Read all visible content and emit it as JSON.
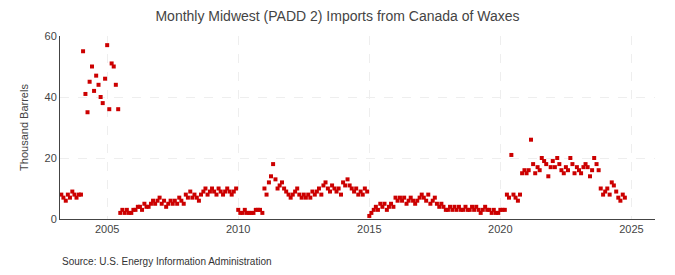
{
  "chart_data": {
    "type": "scatter",
    "title": "Monthly Midwest (PADD 2) Imports from Canada of Waxes",
    "ylabel": "Thousand Barrels",
    "annotations": [
      "Source: U.S. Energy Information Administration"
    ],
    "color": "#cc0000",
    "marker": "square",
    "grid": true,
    "xlim": [
      2003.2,
      2025.9
    ],
    "xticks": [
      2005,
      2010,
      2015,
      2020,
      2025
    ],
    "ylim": [
      0,
      60
    ],
    "yticks": [
      0,
      20,
      40,
      60
    ],
    "x": [
      2003.25,
      2003.33,
      2003.42,
      2003.5,
      2003.58,
      2003.67,
      2003.75,
      2003.83,
      2003.92,
      2004.0,
      2004.08,
      2004.17,
      2004.25,
      2004.33,
      2004.42,
      2004.5,
      2004.58,
      2004.67,
      2004.75,
      2004.83,
      2004.92,
      2005.0,
      2005.08,
      2005.17,
      2005.25,
      2005.33,
      2005.42,
      2005.5,
      2005.58,
      2005.67,
      2005.75,
      2005.83,
      2005.92,
      2006.0,
      2006.08,
      2006.17,
      2006.25,
      2006.33,
      2006.42,
      2006.5,
      2006.58,
      2006.67,
      2006.75,
      2006.83,
      2006.92,
      2007.0,
      2007.08,
      2007.17,
      2007.25,
      2007.33,
      2007.42,
      2007.5,
      2007.58,
      2007.67,
      2007.75,
      2007.83,
      2007.92,
      2008.0,
      2008.08,
      2008.17,
      2008.25,
      2008.33,
      2008.42,
      2008.5,
      2008.58,
      2008.67,
      2008.75,
      2008.83,
      2008.92,
      2009.0,
      2009.08,
      2009.17,
      2009.25,
      2009.33,
      2009.42,
      2009.5,
      2009.58,
      2009.67,
      2009.75,
      2009.83,
      2009.92,
      2010.0,
      2010.08,
      2010.17,
      2010.25,
      2010.33,
      2010.42,
      2010.5,
      2010.58,
      2010.67,
      2010.75,
      2010.83,
      2010.92,
      2011.0,
      2011.08,
      2011.17,
      2011.25,
      2011.33,
      2011.42,
      2011.5,
      2011.58,
      2011.67,
      2011.75,
      2011.83,
      2011.92,
      2012.0,
      2012.08,
      2012.17,
      2012.25,
      2012.33,
      2012.42,
      2012.5,
      2012.58,
      2012.67,
      2012.75,
      2012.83,
      2012.92,
      2013.0,
      2013.08,
      2013.17,
      2013.25,
      2013.33,
      2013.42,
      2013.5,
      2013.58,
      2013.67,
      2013.75,
      2013.83,
      2013.92,
      2014.0,
      2014.08,
      2014.17,
      2014.25,
      2014.33,
      2014.42,
      2014.5,
      2014.58,
      2014.67,
      2014.75,
      2014.83,
      2014.92,
      2015.0,
      2015.08,
      2015.17,
      2015.25,
      2015.33,
      2015.42,
      2015.5,
      2015.58,
      2015.67,
      2015.75,
      2015.83,
      2015.92,
      2016.0,
      2016.08,
      2016.17,
      2016.25,
      2016.33,
      2016.42,
      2016.5,
      2016.58,
      2016.67,
      2016.75,
      2016.83,
      2016.92,
      2017.0,
      2017.08,
      2017.17,
      2017.25,
      2017.33,
      2017.42,
      2017.5,
      2017.58,
      2017.67,
      2017.75,
      2017.83,
      2017.92,
      2018.0,
      2018.08,
      2018.17,
      2018.25,
      2018.33,
      2018.42,
      2018.5,
      2018.58,
      2018.67,
      2018.75,
      2018.83,
      2018.92,
      2019.0,
      2019.08,
      2019.17,
      2019.25,
      2019.33,
      2019.42,
      2019.5,
      2019.58,
      2019.67,
      2019.75,
      2019.83,
      2019.92,
      2020.0,
      2020.08,
      2020.17,
      2020.25,
      2020.33,
      2020.42,
      2020.5,
      2020.58,
      2020.67,
      2020.75,
      2020.83,
      2020.92,
      2021.0,
      2021.08,
      2021.17,
      2021.25,
      2021.33,
      2021.42,
      2021.5,
      2021.58,
      2021.67,
      2021.75,
      2021.83,
      2021.92,
      2022.0,
      2022.08,
      2022.17,
      2022.25,
      2022.33,
      2022.42,
      2022.5,
      2022.58,
      2022.67,
      2022.75,
      2022.83,
      2022.92,
      2023.0,
      2023.08,
      2023.17,
      2023.25,
      2023.33,
      2023.42,
      2023.5,
      2023.58,
      2023.67,
      2023.75,
      2023.83,
      2023.92,
      2024.0,
      2024.08,
      2024.17,
      2024.25,
      2024.33,
      2024.42,
      2024.5,
      2024.58,
      2024.67,
      2024.75
    ],
    "values": [
      8,
      7,
      6,
      8,
      7,
      9,
      8,
      7,
      8,
      8,
      55,
      41,
      35,
      45,
      50,
      42,
      47,
      44,
      40,
      38,
      46,
      57,
      36,
      51,
      50,
      44,
      36,
      2,
      3,
      2,
      3,
      2,
      2,
      3,
      3,
      4,
      4,
      3,
      5,
      4,
      4,
      5,
      6,
      5,
      6,
      7,
      5,
      6,
      4,
      5,
      6,
      5,
      6,
      5,
      7,
      6,
      5,
      8,
      7,
      9,
      7,
      8,
      7,
      6,
      8,
      9,
      10,
      8,
      9,
      10,
      9,
      8,
      10,
      9,
      8,
      9,
      10,
      9,
      8,
      9,
      10,
      3,
      2,
      2,
      3,
      2,
      2,
      2,
      2,
      3,
      3,
      3,
      2,
      10,
      8,
      12,
      14,
      18,
      13,
      10,
      11,
      12,
      10,
      9,
      8,
      7,
      8,
      9,
      10,
      8,
      7,
      8,
      7,
      8,
      7,
      9,
      8,
      9,
      10,
      8,
      11,
      12,
      10,
      9,
      11,
      10,
      9,
      10,
      8,
      12,
      11,
      13,
      11,
      10,
      9,
      10,
      8,
      9,
      8,
      10,
      9,
      1,
      2,
      3,
      4,
      3,
      5,
      4,
      5,
      3,
      4,
      5,
      4,
      7,
      6,
      7,
      6,
      7,
      5,
      6,
      7,
      6,
      5,
      6,
      7,
      8,
      7,
      6,
      8,
      5,
      6,
      7,
      5,
      4,
      5,
      4,
      3,
      3,
      4,
      3,
      4,
      3,
      4,
      3,
      3,
      4,
      3,
      3,
      4,
      3,
      4,
      3,
      2,
      3,
      4,
      3,
      3,
      2,
      3,
      2,
      2,
      3,
      3,
      3,
      8,
      7,
      21,
      8,
      7,
      6,
      8,
      15,
      16,
      15,
      16,
      26,
      18,
      15,
      17,
      16,
      20,
      19,
      18,
      14,
      17,
      19,
      17,
      20,
      18,
      16,
      15,
      17,
      16,
      20,
      18,
      15,
      17,
      16,
      15,
      17,
      18,
      17,
      14,
      16,
      20,
      18,
      16,
      10,
      8,
      9,
      10,
      8,
      12,
      11,
      9,
      7,
      6,
      8,
      7
    ]
  }
}
